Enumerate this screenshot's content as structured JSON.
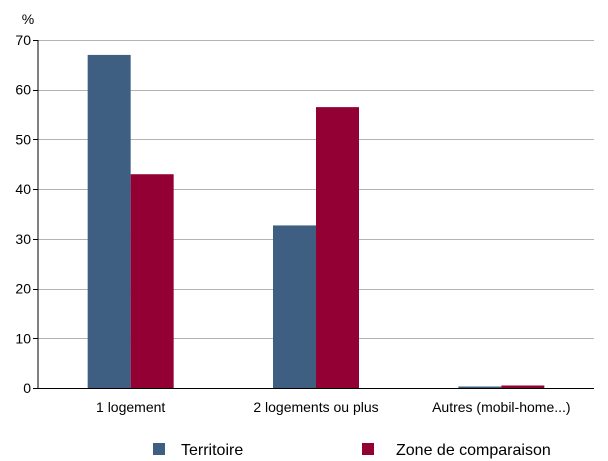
{
  "chart_data": {
    "type": "bar",
    "unit_label": "%",
    "categories": [
      "1 logement",
      "2 logements ou plus",
      "Autres (mobil-home...)"
    ],
    "series": [
      {
        "name": "Territoire",
        "color": "#3f5f82",
        "values": [
          67,
          32.7,
          0.3
        ]
      },
      {
        "name": "Zone de comparaison",
        "color": "#930134",
        "values": [
          43,
          56.5,
          0.5
        ]
      }
    ],
    "ylim": [
      0,
      70
    ],
    "yticks": [
      0,
      10,
      20,
      30,
      40,
      50,
      60,
      70
    ],
    "grid": true,
    "legend_position": "bottom"
  }
}
